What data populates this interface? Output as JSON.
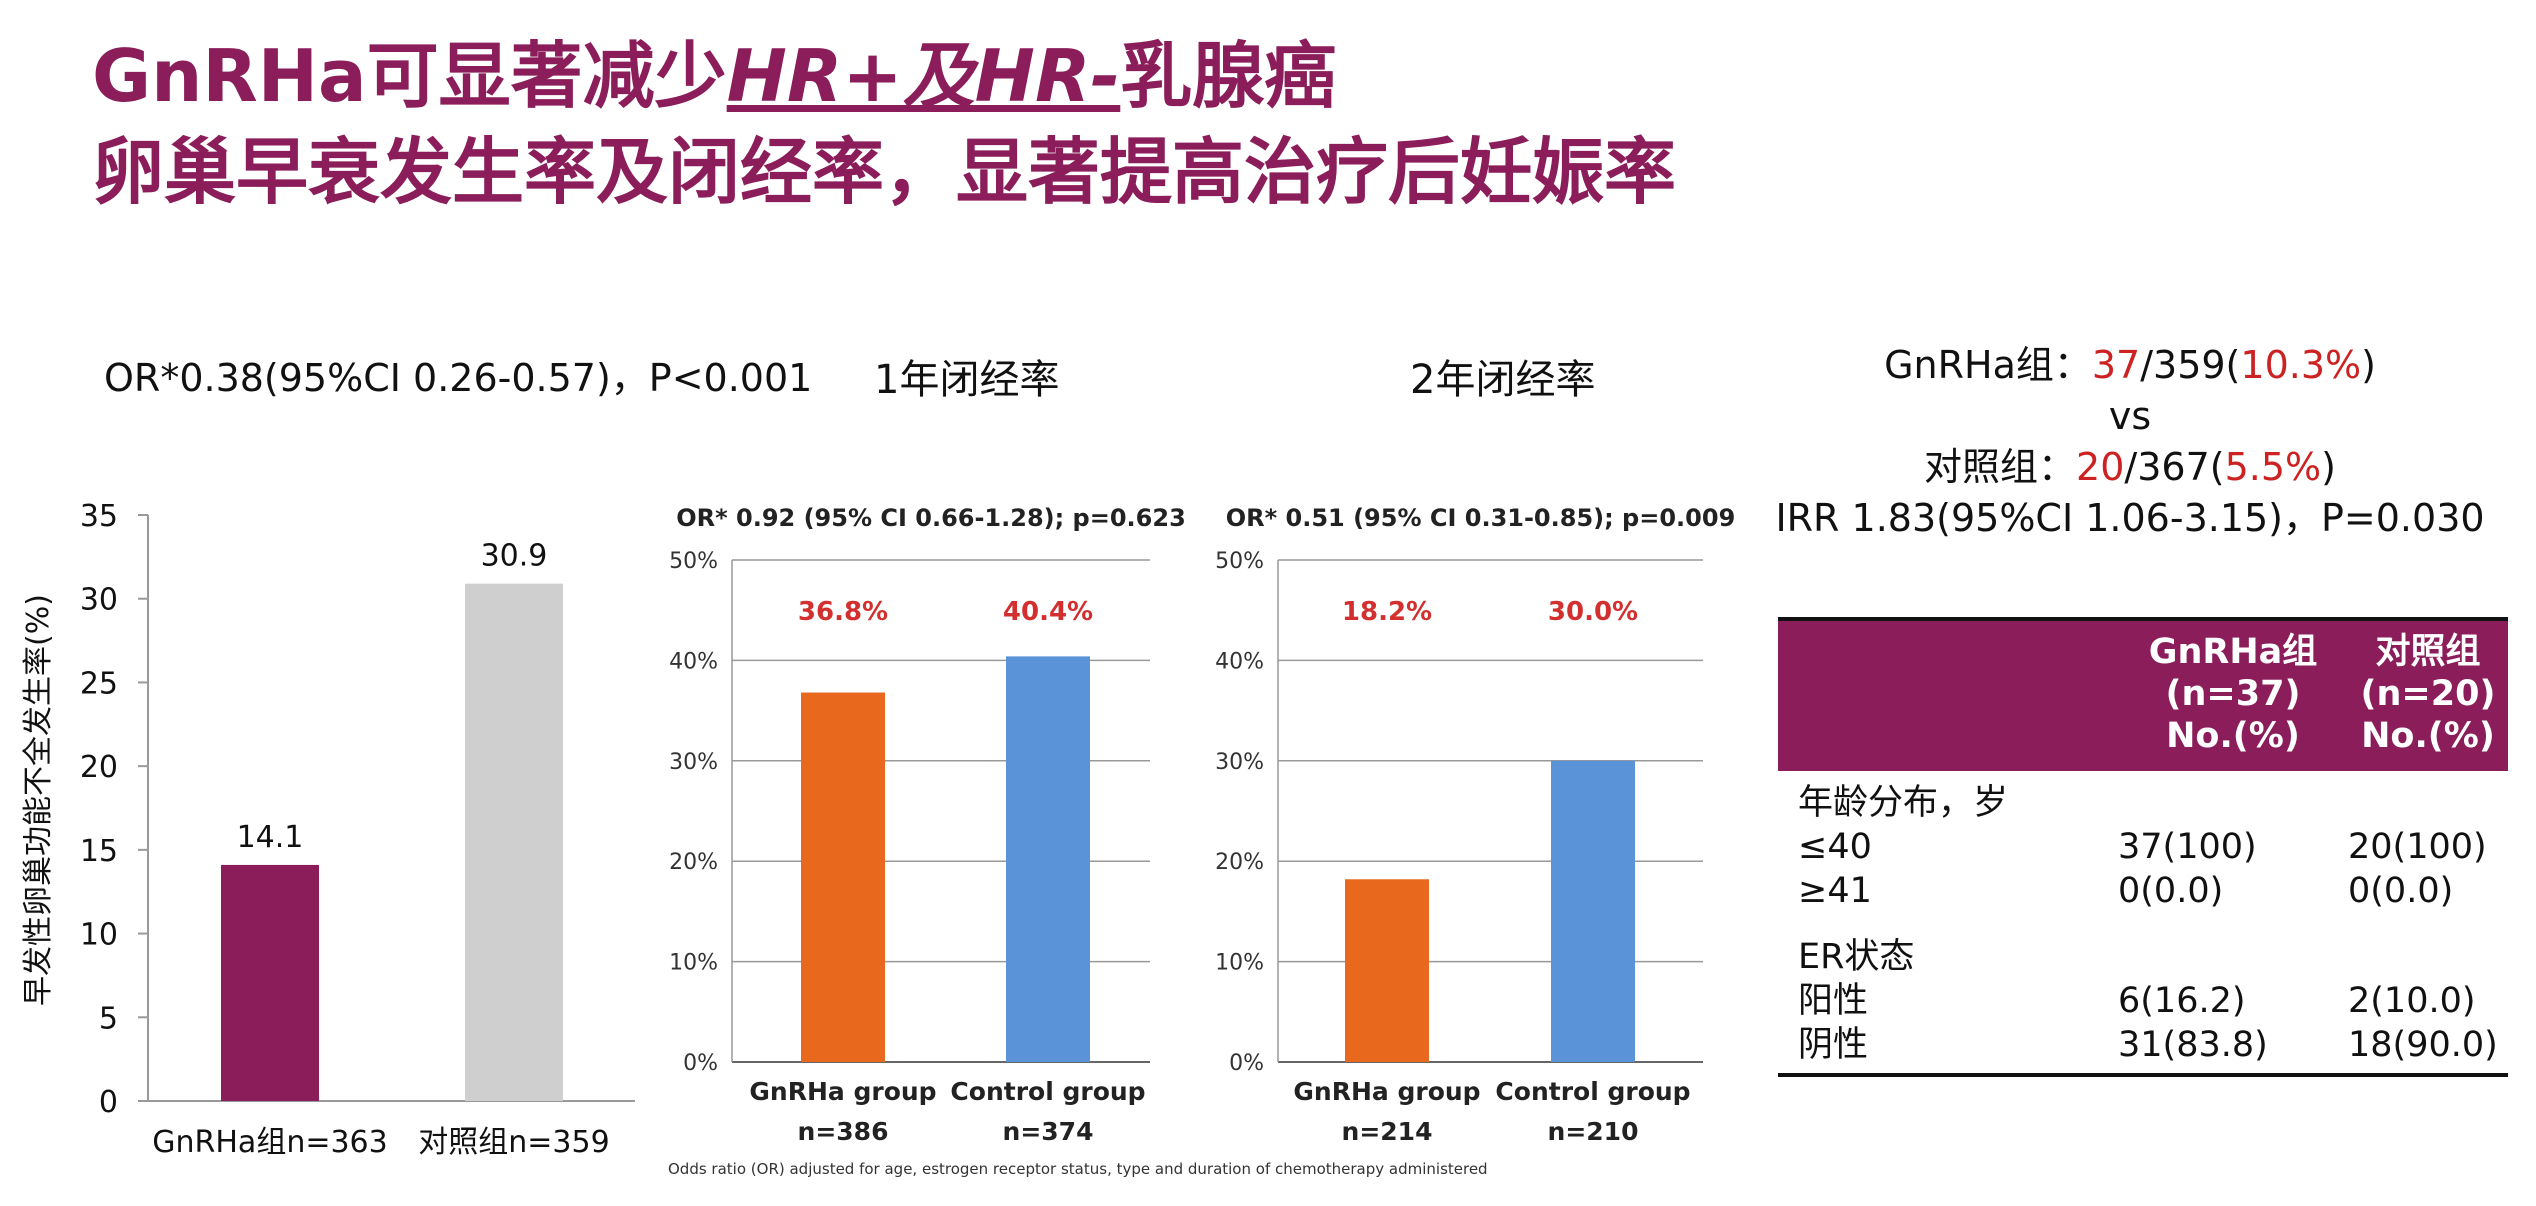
{
  "title": {
    "line1_prefix": "GnRHa可显著减少",
    "line1_hr": "HR+及HR-",
    "line1_suffix": "乳腺癌",
    "line2": "卵巢早衰发生率及闭经率，显著提高治疗后妊娠率"
  },
  "chart_data": [
    {
      "type": "bar",
      "subtitle": "OR*0.38(95%CI 0.26-0.57)，P<0.001",
      "ylabel": "早发性卵巢功能不全发生率(%)",
      "ylim": [
        0,
        35
      ],
      "yticks": [
        "0",
        "5",
        "10",
        "15",
        "20",
        "25",
        "30",
        "35"
      ],
      "categories": [
        "GnRHa组n=363",
        "对照组n=359"
      ],
      "values": [
        14.1,
        30.9
      ],
      "value_labels": [
        "14.1",
        "30.9"
      ],
      "colors": [
        "#8b1d5a",
        "#cfcfcf"
      ]
    },
    {
      "type": "bar",
      "title": "1年闭经率",
      "subtitle": "OR* 0.92 (95% CI 0.66-1.28); p=0.623",
      "ylim": [
        0,
        50
      ],
      "yticks": [
        "0%",
        "10%",
        "20%",
        "30%",
        "40%",
        "50%"
      ],
      "categories": [
        "GnRHa group",
        "Control group"
      ],
      "n_labels": [
        "n=386",
        "n=374"
      ],
      "values": [
        36.8,
        40.4
      ],
      "value_labels": [
        "36.8%",
        "40.4%"
      ],
      "colors": [
        "#e8681e",
        "#5a93d8"
      ]
    },
    {
      "type": "bar",
      "title": "2年闭经率",
      "subtitle": "OR* 0.51 (95% CI 0.31-0.85); p=0.009",
      "ylim": [
        0,
        50
      ],
      "yticks": [
        "0%",
        "10%",
        "20%",
        "30%",
        "40%",
        "50%"
      ],
      "categories": [
        "GnRHa group",
        "Control group"
      ],
      "n_labels": [
        "n=214",
        "n=210"
      ],
      "values": [
        18.2,
        30.0
      ],
      "value_labels": [
        "18.2%",
        "30.0%"
      ],
      "colors": [
        "#e8681e",
        "#5a93d8"
      ]
    }
  ],
  "footnote": "Odds ratio (OR) adjusted for age, estrogen receptor status, type and duration of chemotherapy administered",
  "stats": {
    "gnrha_label": "GnRHa组：",
    "gnrha_count": "37",
    "gnrha_total": "/359(",
    "gnrha_pct": "10.3%",
    "gnrha_close": ")",
    "vs": "vs",
    "ctrl_label": "对照组：",
    "ctrl_count": "20",
    "ctrl_total": "/367(",
    "ctrl_pct": "5.5%",
    "ctrl_close": ")",
    "irr": "IRR 1.83(95%CI 1.06-3.15)，P=0.030"
  },
  "table": {
    "col2": [
      "GnRHa组",
      "(n=37)",
      "No.(%)"
    ],
    "col3": [
      "对照组",
      "(n=20)",
      "No.(%)"
    ],
    "age_header": "年龄分布，岁",
    "age_rows": [
      [
        "≤40",
        "37(100)",
        "20(100)"
      ],
      [
        "≥41",
        "0(0.0)",
        "0(0.0)"
      ]
    ],
    "er_header": "ER状态",
    "er_rows": [
      [
        "阳性",
        "6(16.2)",
        "2(10.0)"
      ],
      [
        "阴性",
        "31(83.8)",
        "18(90.0)"
      ]
    ]
  },
  "colors": {
    "brand": "#8b1d5a",
    "highlight": "#cc2222"
  }
}
